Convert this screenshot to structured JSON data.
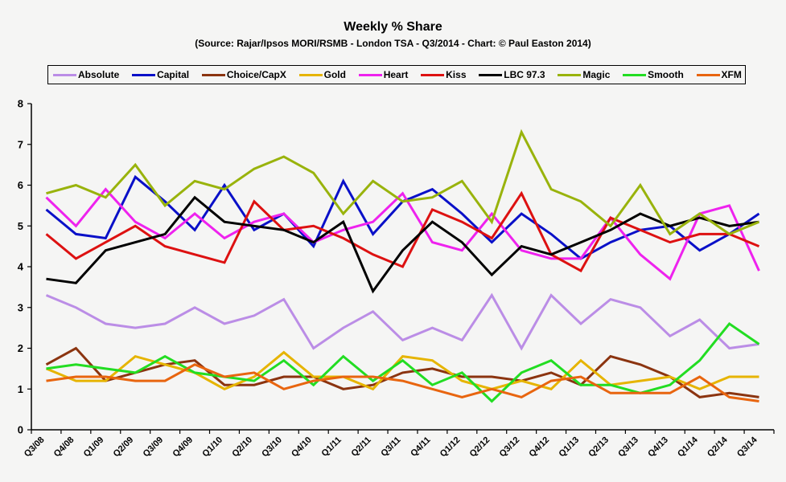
{
  "chart_data": {
    "type": "line",
    "title": "Weekly % Share",
    "subtitle": "(Source: Rajar/Ipsos MORI/RSMB - London TSA - Q3/2014 - Chart: © Paul Easton 2014)",
    "xlabel": "",
    "ylabel": "",
    "ylim": [
      0,
      8
    ],
    "yticks": [
      "0",
      "1",
      "2",
      "3",
      "4",
      "5",
      "6",
      "7",
      "8"
    ],
    "grid": false,
    "legend": "top",
    "categories": [
      "Q3/08",
      "Q4/08",
      "Q1/09",
      "Q2/09",
      "Q3/09",
      "Q4/09",
      "Q1/10",
      "Q2/10",
      "Q3/10",
      "Q4/10",
      "Q1/11",
      "Q2/11",
      "Q3/11",
      "Q4/11",
      "Q1/12",
      "Q2/12",
      "Q3/12",
      "Q4/12",
      "Q1/13",
      "Q2/13",
      "Q3/13",
      "Q4/13",
      "Q1/14",
      "Q2/14",
      "Q3/14"
    ],
    "series": [
      {
        "name": "Absolute",
        "color": "#bb8de6",
        "values": [
          3.3,
          3.0,
          2.6,
          2.5,
          2.6,
          3.0,
          2.6,
          2.8,
          3.2,
          2.0,
          2.5,
          2.9,
          2.2,
          2.5,
          2.2,
          3.3,
          2.0,
          3.3,
          2.6,
          3.2,
          3.0,
          2.3,
          2.7,
          2.0,
          2.1
        ]
      },
      {
        "name": "Capital",
        "color": "#0a10c8",
        "values": [
          5.4,
          4.8,
          4.7,
          6.2,
          5.6,
          4.9,
          6.0,
          4.9,
          5.3,
          4.5,
          6.1,
          4.8,
          5.6,
          5.9,
          5.3,
          4.6,
          5.3,
          4.8,
          4.2,
          4.6,
          4.9,
          5.0,
          4.4,
          4.8,
          5.3
        ]
      },
      {
        "name": "Choice/CapX",
        "color": "#8b3410",
        "values": [
          1.6,
          2.0,
          1.2,
          1.4,
          1.6,
          1.7,
          1.1,
          1.1,
          1.3,
          1.3,
          1.0,
          1.1,
          1.4,
          1.5,
          1.3,
          1.3,
          1.2,
          1.4,
          1.1,
          1.8,
          1.6,
          1.3,
          0.8,
          0.9,
          0.8
        ]
      },
      {
        "name": "Gold",
        "color": "#e6b400",
        "values": [
          1.5,
          1.2,
          1.2,
          1.8,
          1.6,
          1.4,
          1.0,
          1.3,
          1.9,
          1.3,
          1.3,
          1.0,
          1.8,
          1.7,
          1.2,
          1.0,
          1.2,
          1.0,
          1.7,
          1.1,
          1.2,
          1.3,
          1.0,
          1.3,
          1.3
        ]
      },
      {
        "name": "Heart",
        "color": "#ee22ee",
        "values": [
          5.7,
          5.0,
          5.9,
          5.1,
          4.7,
          5.3,
          4.7,
          5.1,
          5.3,
          4.6,
          4.9,
          5.1,
          5.8,
          4.6,
          4.4,
          5.3,
          4.4,
          4.2,
          4.2,
          5.2,
          4.3,
          3.7,
          5.3,
          5.5,
          3.9
        ]
      },
      {
        "name": "Kiss",
        "color": "#dd1111",
        "values": [
          4.8,
          4.2,
          4.6,
          5.0,
          4.5,
          4.3,
          4.1,
          5.6,
          4.9,
          5.0,
          4.7,
          4.3,
          4.0,
          5.4,
          5.1,
          4.7,
          5.8,
          4.3,
          3.9,
          5.2,
          4.9,
          4.6,
          4.8,
          4.8,
          4.5
        ]
      },
      {
        "name": "LBC 97.3",
        "color": "#000000",
        "values": [
          3.7,
          3.6,
          4.4,
          4.6,
          4.8,
          5.7,
          5.1,
          5.0,
          4.9,
          4.6,
          5.1,
          3.4,
          4.4,
          5.1,
          4.6,
          3.8,
          4.5,
          4.3,
          4.6,
          4.9,
          5.3,
          5.0,
          5.2,
          5.0,
          5.1
        ]
      },
      {
        "name": "Magic",
        "color": "#99b30c",
        "values": [
          5.8,
          6.0,
          5.7,
          6.5,
          5.5,
          6.1,
          5.9,
          6.4,
          6.7,
          6.3,
          5.3,
          6.1,
          5.6,
          5.7,
          6.1,
          5.1,
          7.3,
          5.9,
          5.6,
          5.0,
          6.0,
          4.8,
          5.3,
          4.8,
          5.1
        ]
      },
      {
        "name": "Smooth",
        "color": "#22dd22",
        "values": [
          1.5,
          1.6,
          1.5,
          1.4,
          1.8,
          1.4,
          1.3,
          1.2,
          1.7,
          1.1,
          1.8,
          1.2,
          1.7,
          1.1,
          1.4,
          0.7,
          1.4,
          1.7,
          1.1,
          1.1,
          0.9,
          1.1,
          1.7,
          2.6,
          2.1
        ]
      },
      {
        "name": "XFM",
        "color": "#e8650f",
        "values": [
          1.2,
          1.3,
          1.3,
          1.2,
          1.2,
          1.6,
          1.3,
          1.4,
          1.0,
          1.2,
          1.3,
          1.3,
          1.2,
          1.0,
          0.8,
          1.0,
          0.8,
          1.2,
          1.3,
          0.9,
          0.9,
          0.9,
          1.3,
          0.8,
          0.7
        ]
      }
    ]
  }
}
